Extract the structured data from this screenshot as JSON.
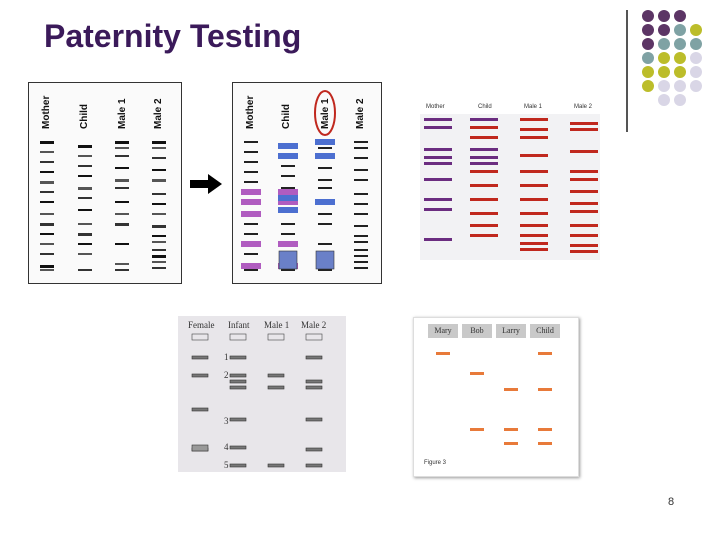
{
  "title": "Paternity Testing",
  "page_number": "8",
  "colors": {
    "title": "#3b1a5a",
    "dot_purple": "#5c3565",
    "dot_teal": "#7fa2a4",
    "dot_olive": "#bcbd2a",
    "dot_lavender": "#d9d6e6",
    "band_red": "#c0281e",
    "band_purple": "#6b2d80",
    "band_orange": "#e87a3a"
  },
  "gel_bw": {
    "lanes": [
      "Mother",
      "Child",
      "Male 1",
      "Male 2"
    ]
  },
  "gel_colored": {
    "lanes": [
      "Mother",
      "Child",
      "Male 1",
      "Male 2"
    ]
  },
  "gel_red": {
    "lanes": [
      "Mother",
      "Child",
      "Male 1",
      "Male 2"
    ]
  },
  "gel_infant": {
    "lanes": [
      "Female",
      "Infant",
      "Male 1",
      "Male 2"
    ],
    "numbers": [
      "1",
      "2",
      "3",
      "4",
      "5"
    ]
  },
  "gel_names": {
    "lanes": [
      "Mary",
      "Bob",
      "Larry",
      "Child"
    ],
    "caption": "Figure 3"
  }
}
